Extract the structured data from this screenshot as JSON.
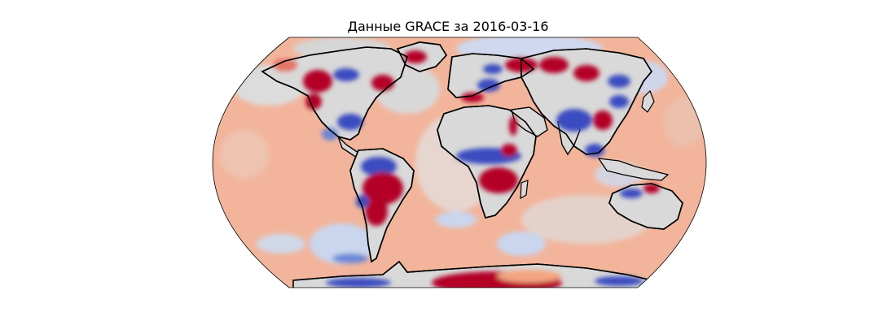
{
  "figure": {
    "title": "Данные GRACE за 2016-03-16"
  },
  "map": {
    "projection": "Robinson",
    "background_fill": "#f0a98e",
    "colormap": "coolwarm",
    "colors": {
      "positive_strong": "#b40426",
      "positive_mild": "#f4a582",
      "neutral": "#dddddd",
      "negative_mild": "#a8c4f0",
      "negative_strong": "#3b4cc0",
      "coastline": "#000000"
    }
  }
}
